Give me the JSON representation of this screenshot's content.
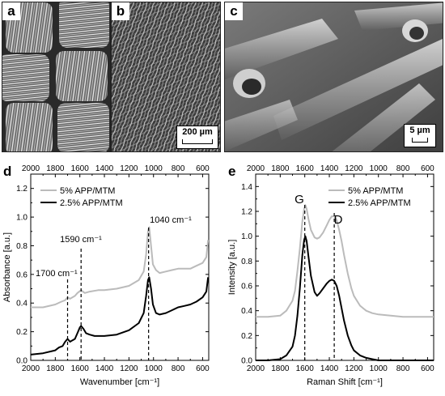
{
  "panels": {
    "a": {
      "letter": "a"
    },
    "b": {
      "letter": "b",
      "scalebar": "200 µm"
    },
    "c": {
      "letter": "c",
      "scalebar": "5 µm"
    }
  },
  "chart_data": [
    {
      "panel": "d",
      "type": "line",
      "xlabel": "Wavenumber [cm⁻¹]",
      "ylabel": "Absorbance [a.u.]",
      "xlim": [
        2000,
        550
      ],
      "ylim": [
        0.0,
        1.3
      ],
      "x_ticks": [
        2000,
        1800,
        1600,
        1400,
        1200,
        1000,
        800,
        600
      ],
      "x_tick_labels": [
        "2000",
        "1800",
        "1600",
        "1400",
        "1200",
        "1000",
        "800",
        "600"
      ],
      "y_ticks": [
        0.0,
        0.2,
        0.4,
        0.6,
        0.8,
        1.0,
        1.2
      ],
      "y_tick_labels": [
        "0.0",
        "0.2",
        "0.4",
        "0.6",
        "0.8",
        "1.0",
        "1.2"
      ],
      "legend": "top-left",
      "annotations": [
        {
          "text": "1700 cm⁻¹",
          "x": 1700
        },
        {
          "text": "1590 cm⁻¹",
          "x": 1590
        },
        {
          "text": "1040 cm⁻¹",
          "x": 1040
        }
      ],
      "series": [
        {
          "name": "5% APP/MTM",
          "color": "#bbbbbb",
          "x": [
            2000,
            1900,
            1800,
            1750,
            1720,
            1700,
            1680,
            1640,
            1620,
            1590,
            1560,
            1520,
            1450,
            1400,
            1300,
            1200,
            1120,
            1080,
            1060,
            1045,
            1035,
            1020,
            1005,
            980,
            950,
            900,
            850,
            800,
            750,
            700,
            650,
            600,
            570,
            555
          ],
          "y": [
            0.37,
            0.37,
            0.39,
            0.41,
            0.42,
            0.44,
            0.43,
            0.45,
            0.47,
            0.49,
            0.47,
            0.48,
            0.49,
            0.49,
            0.5,
            0.52,
            0.56,
            0.62,
            0.74,
            0.9,
            0.93,
            0.8,
            0.67,
            0.63,
            0.61,
            0.62,
            0.63,
            0.64,
            0.64,
            0.64,
            0.66,
            0.68,
            0.72,
            0.84
          ]
        },
        {
          "name": "2.5% APP/MTM",
          "color": "#000000",
          "x": [
            2000,
            1900,
            1800,
            1770,
            1740,
            1720,
            1700,
            1680,
            1660,
            1640,
            1620,
            1600,
            1590,
            1570,
            1550,
            1520,
            1480,
            1400,
            1300,
            1200,
            1120,
            1080,
            1060,
            1045,
            1035,
            1020,
            1005,
            980,
            950,
            900,
            850,
            800,
            750,
            700,
            650,
            600,
            570,
            555
          ],
          "y": [
            0.04,
            0.05,
            0.07,
            0.09,
            0.1,
            0.13,
            0.15,
            0.13,
            0.14,
            0.15,
            0.19,
            0.23,
            0.24,
            0.22,
            0.19,
            0.18,
            0.17,
            0.17,
            0.18,
            0.21,
            0.26,
            0.33,
            0.45,
            0.56,
            0.58,
            0.5,
            0.39,
            0.33,
            0.32,
            0.33,
            0.35,
            0.37,
            0.38,
            0.39,
            0.41,
            0.44,
            0.48,
            0.58
          ]
        }
      ]
    },
    {
      "panel": "e",
      "type": "line",
      "xlabel": "Raman Shift [cm⁻¹]",
      "ylabel": "Intensity [a.u.]",
      "xlim": [
        2000,
        550
      ],
      "ylim": [
        0.0,
        1.5
      ],
      "x_ticks": [
        2000,
        1800,
        1600,
        1400,
        1200,
        1000,
        800,
        600
      ],
      "x_tick_labels": [
        "2000",
        "1800",
        "1600",
        "1400",
        "1200",
        "1000",
        "800",
        "600"
      ],
      "y_ticks": [
        0.0,
        0.2,
        0.4,
        0.6,
        0.8,
        1.0,
        1.2,
        1.4
      ],
      "y_tick_labels": [
        "0.0",
        "0.2",
        "0.4",
        "0.6",
        "0.8",
        "1.0",
        "1.2",
        "1.4"
      ],
      "legend": "top-right",
      "annotations": [
        {
          "text": "G",
          "x": 1600
        },
        {
          "text": "D",
          "x": 1360
        }
      ],
      "series": [
        {
          "name": "5% APP/MTM",
          "color": "#bbbbbb",
          "x": [
            2000,
            1900,
            1800,
            1750,
            1700,
            1680,
            1660,
            1640,
            1620,
            1605,
            1595,
            1585,
            1570,
            1550,
            1520,
            1500,
            1480,
            1450,
            1420,
            1400,
            1380,
            1360,
            1340,
            1320,
            1300,
            1280,
            1250,
            1220,
            1200,
            1150,
            1100,
            1050,
            1000,
            900,
            800,
            700,
            600,
            550
          ],
          "y": [
            0.35,
            0.35,
            0.36,
            0.4,
            0.48,
            0.56,
            0.72,
            0.9,
            1.12,
            1.22,
            1.25,
            1.22,
            1.14,
            1.05,
            0.99,
            0.98,
            0.99,
            1.03,
            1.09,
            1.13,
            1.16,
            1.16,
            1.13,
            1.05,
            0.96,
            0.85,
            0.7,
            0.58,
            0.52,
            0.44,
            0.4,
            0.38,
            0.37,
            0.36,
            0.35,
            0.35,
            0.35,
            0.35
          ]
        },
        {
          "name": "2.5% APP/MTM",
          "color": "#000000",
          "x": [
            2000,
            1900,
            1800,
            1750,
            1700,
            1680,
            1660,
            1640,
            1620,
            1605,
            1595,
            1585,
            1570,
            1550,
            1520,
            1500,
            1480,
            1450,
            1420,
            1400,
            1380,
            1360,
            1340,
            1320,
            1300,
            1280,
            1250,
            1220,
            1200,
            1150,
            1100,
            1050,
            1000,
            900,
            800,
            700,
            600,
            550
          ],
          "y": [
            0.0,
            0.0,
            0.01,
            0.04,
            0.11,
            0.2,
            0.36,
            0.58,
            0.85,
            0.97,
            1.0,
            0.96,
            0.84,
            0.68,
            0.55,
            0.52,
            0.54,
            0.58,
            0.62,
            0.64,
            0.65,
            0.64,
            0.6,
            0.52,
            0.42,
            0.32,
            0.2,
            0.12,
            0.08,
            0.04,
            0.02,
            0.01,
            0.0,
            0.0,
            0.0,
            0.0,
            0.0,
            0.0
          ]
        }
      ]
    }
  ]
}
